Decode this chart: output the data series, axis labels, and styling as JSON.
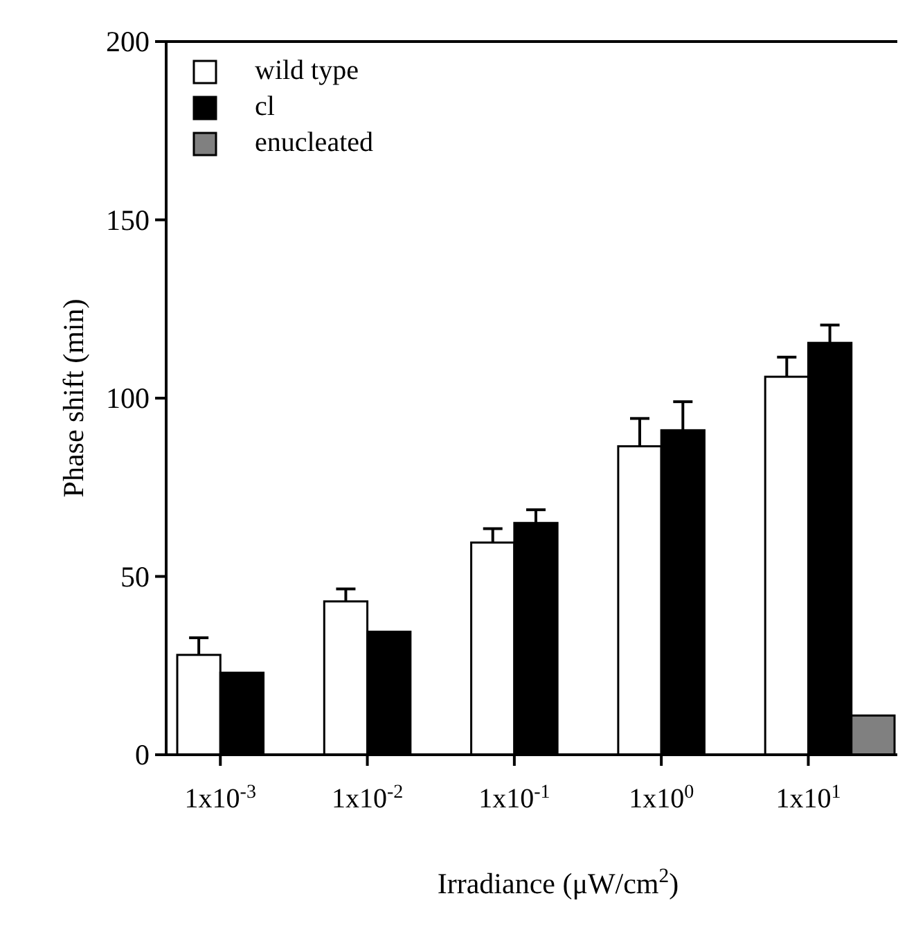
{
  "chart_data": {
    "type": "bar",
    "ylabel": "Phase shift (min)",
    "xlabel": "Irradiance (μW/cm$^{2}$)",
    "categories": [
      "1x10$^{-3}$",
      "1x10$^{-2}$",
      "1x10$^{-1}$",
      "1x10$^{0}$",
      "1x10$^{1}$"
    ],
    "series": [
      {
        "name": "wild type",
        "color": "#ffffff",
        "values": [
          28,
          43,
          59.5,
          86.5,
          106
        ],
        "errors": [
          [
            28,
            32.8
          ],
          [
            43,
            46.5
          ],
          [
            59.5,
            63.4
          ],
          [
            86.5,
            94.3
          ],
          [
            106,
            111.5
          ]
        ]
      },
      {
        "name": "cl",
        "color": "#000000",
        "values": [
          23,
          34.5,
          65,
          91,
          115.5
        ],
        "errors": [
          null,
          null,
          [
            65,
            68.7
          ],
          [
            91,
            99
          ],
          [
            115.5,
            120.5
          ]
        ]
      },
      {
        "name": "enucleated",
        "color": "#808080",
        "values": [
          null,
          null,
          null,
          null,
          11
        ]
      }
    ],
    "ylim": [
      0,
      200
    ],
    "yticks": [
      0,
      50,
      100,
      150,
      200
    ],
    "grid": false,
    "legend": "top left"
  }
}
